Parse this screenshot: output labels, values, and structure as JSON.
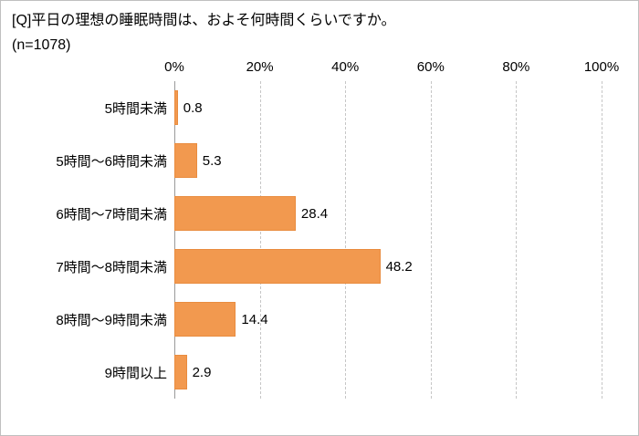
{
  "header": {
    "title": "[Q]平日の理想の睡眠時間は、およそ何時間くらいですか。",
    "sample_size": "(n=1078)"
  },
  "chart_data": {
    "type": "bar",
    "orientation": "horizontal",
    "title": "[Q]平日の理想の睡眠時間は、およそ何時間くらいですか。",
    "sample_size_label": "(n=1078)",
    "categories": [
      "5時間未満",
      "5時間～6時間未満",
      "6時間～7時間未満",
      "7時間～8時間未満",
      "8時間～9時間未満",
      "9時間以上"
    ],
    "values": [
      0.8,
      5.3,
      28.4,
      48.2,
      14.4,
      2.9
    ],
    "value_unit": "%",
    "xlim": [
      0,
      100
    ],
    "x_ticks": [
      "0%",
      "20%",
      "40%",
      "60%",
      "80%",
      "100%"
    ],
    "x_tick_values": [
      0,
      20,
      40,
      60,
      80,
      100
    ],
    "grid": "dashed-vertical",
    "legend": "none",
    "bar_color": "#f2994f"
  }
}
